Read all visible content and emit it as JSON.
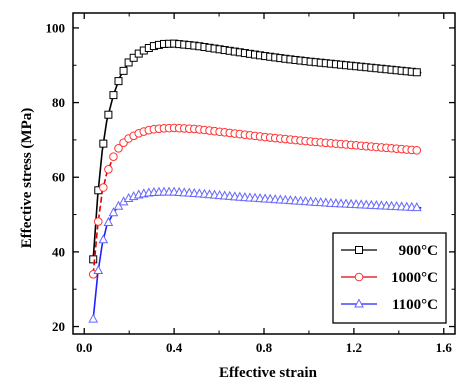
{
  "chart_data": {
    "type": "line",
    "xlabel": "Effective strain",
    "ylabel": "Effective stress (MPa)",
    "xlim": [
      -0.05,
      1.65
    ],
    "ylim": [
      18,
      104
    ],
    "xticks": [
      "0.0",
      "0.4",
      "0.8",
      "1.2",
      "1.6"
    ],
    "yticks": [
      "20",
      "40",
      "60",
      "80",
      "100"
    ],
    "xtick_values": [
      0.0,
      0.4,
      0.8,
      1.2,
      1.6
    ],
    "ytick_values": [
      20,
      40,
      60,
      80,
      100
    ],
    "legend_position": "bottom-right",
    "grid": false,
    "series": [
      {
        "name": "900°C",
        "marker": "square",
        "color": "#000000",
        "marker_color": "#000000",
        "x": [
          0.04,
          0.06,
          0.08,
          0.1,
          0.13,
          0.16,
          0.2,
          0.25,
          0.3,
          0.35,
          0.4,
          0.5,
          0.6,
          0.7,
          0.8,
          0.9,
          1.0,
          1.1,
          1.2,
          1.3,
          1.4,
          1.5
        ],
        "y": [
          38,
          55,
          67,
          75,
          82,
          87,
          91,
          93.5,
          95,
          95.7,
          95.8,
          95.2,
          94.3,
          93.4,
          92.5,
          91.7,
          91,
          90.4,
          89.8,
          89.2,
          88.6,
          88
        ]
      },
      {
        "name": "1000°C",
        "marker": "circle",
        "color": "#e00000",
        "marker_color": "#ff3333",
        "x": [
          0.04,
          0.06,
          0.08,
          0.1,
          0.13,
          0.16,
          0.2,
          0.25,
          0.3,
          0.35,
          0.4,
          0.5,
          0.6,
          0.7,
          0.8,
          0.9,
          1.0,
          1.1,
          1.2,
          1.3,
          1.4,
          1.5
        ],
        "y": [
          34,
          47,
          56,
          61,
          65.5,
          68.5,
          70.5,
          72,
          72.8,
          73.1,
          73.2,
          72.9,
          72.2,
          71.5,
          70.8,
          70.2,
          69.6,
          69.1,
          68.6,
          68.1,
          67.6,
          67.1
        ]
      },
      {
        "name": "1100°C",
        "marker": "triangle",
        "color": "#2020ff",
        "marker_color": "#6666ff",
        "x": [
          0.04,
          0.06,
          0.08,
          0.1,
          0.13,
          0.16,
          0.2,
          0.25,
          0.3,
          0.35,
          0.4,
          0.5,
          0.6,
          0.7,
          0.8,
          0.9,
          1.0,
          1.1,
          1.2,
          1.3,
          1.4,
          1.5
        ],
        "y": [
          22,
          34,
          42,
          47,
          50.5,
          52.8,
          54.4,
          55.4,
          55.9,
          56,
          56,
          55.6,
          55.1,
          54.6,
          54.2,
          53.8,
          53.4,
          53,
          52.7,
          52.4,
          52.1,
          51.8
        ]
      }
    ]
  }
}
